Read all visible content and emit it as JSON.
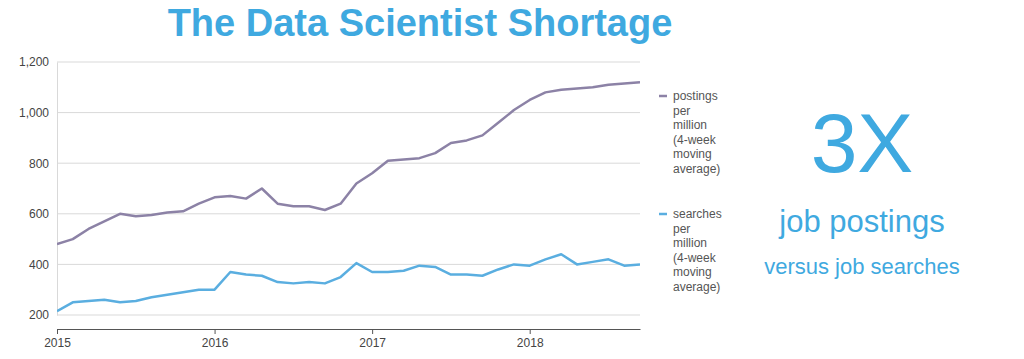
{
  "chart_data": {
    "type": "line",
    "title": "The Data Scientist Shortage",
    "annotations": [
      "3X",
      "job postings",
      "versus job searches"
    ],
    "x": [
      2015.0,
      2015.1,
      2015.2,
      2015.3,
      2015.4,
      2015.5,
      2015.6,
      2015.7,
      2015.8,
      2015.9,
      2016.0,
      2016.1,
      2016.2,
      2016.3,
      2016.4,
      2016.5,
      2016.6,
      2016.7,
      2016.8,
      2016.9,
      2017.0,
      2017.1,
      2017.2,
      2017.3,
      2017.4,
      2017.5,
      2017.6,
      2017.7,
      2017.8,
      2017.9,
      2018.0,
      2018.1,
      2018.2,
      2018.3,
      2018.4,
      2018.5,
      2018.6,
      2018.7
    ],
    "series": [
      {
        "name": "postings per million (4-week moving average)",
        "color": "#8c82a6",
        "values": [
          480,
          500,
          540,
          570,
          600,
          590,
          595,
          605,
          610,
          640,
          665,
          670,
          660,
          700,
          640,
          630,
          630,
          615,
          640,
          720,
          760,
          810,
          815,
          820,
          840,
          880,
          890,
          910,
          960,
          1010,
          1050,
          1080,
          1090,
          1095,
          1100,
          1110,
          1115,
          1120
        ]
      },
      {
        "name": "searches per million (4-week moving average)",
        "color": "#5aaee0",
        "values": [
          215,
          250,
          255,
          260,
          250,
          255,
          270,
          280,
          290,
          300,
          300,
          370,
          360,
          355,
          330,
          325,
          330,
          325,
          350,
          405,
          370,
          370,
          375,
          395,
          390,
          360,
          360,
          355,
          380,
          400,
          395,
          420,
          440,
          400,
          410,
          420,
          395,
          400
        ]
      }
    ],
    "xlim": [
      2015,
      2018.7
    ],
    "xticks": [
      2015,
      2016,
      2017,
      2018
    ],
    "ylim": [
      200,
      1200
    ],
    "yticks": [
      200,
      400,
      600,
      800,
      {
        "value": 1000,
        "label": "1,000"
      },
      {
        "value": 1200,
        "label": "1,200"
      }
    ],
    "grid": true,
    "legend": "right"
  }
}
